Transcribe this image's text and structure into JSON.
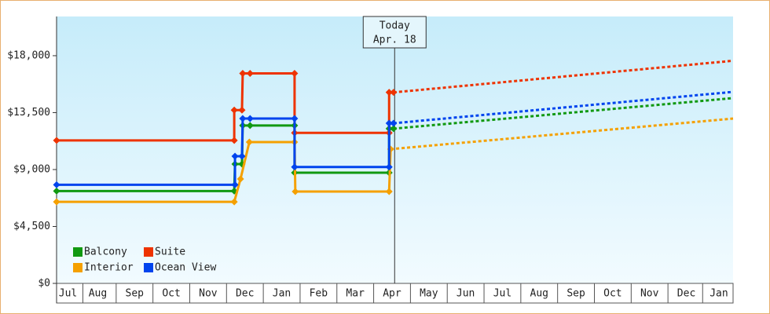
{
  "chart_data": {
    "type": "line",
    "step": true,
    "xlim": [
      0.38,
      18.77
    ],
    "ylim": [
      0,
      21100
    ],
    "yticks": [
      {
        "value": 0,
        "label": "$0"
      },
      {
        "value": 4500,
        "label": "$4,500"
      },
      {
        "value": 9000,
        "label": "$9,000"
      },
      {
        "value": 13500,
        "label": "$13,500"
      },
      {
        "value": 18000,
        "label": "$18,000"
      }
    ],
    "xticks": [
      {
        "value": 0.69,
        "label": "Jul"
      },
      {
        "value": 1.5,
        "label": "Aug"
      },
      {
        "value": 2.5,
        "label": "Sep"
      },
      {
        "value": 3.5,
        "label": "Oct"
      },
      {
        "value": 4.5,
        "label": "Nov"
      },
      {
        "value": 5.5,
        "label": "Dec"
      },
      {
        "value": 6.5,
        "label": "Jan"
      },
      {
        "value": 7.5,
        "label": "Feb"
      },
      {
        "value": 8.5,
        "label": "Mar"
      },
      {
        "value": 9.5,
        "label": "Apr"
      },
      {
        "value": 10.5,
        "label": "May"
      },
      {
        "value": 11.5,
        "label": "Jun"
      },
      {
        "value": 12.5,
        "label": "Jul"
      },
      {
        "value": 13.5,
        "label": "Aug"
      },
      {
        "value": 14.5,
        "label": "Sep"
      },
      {
        "value": 15.5,
        "label": "Oct"
      },
      {
        "value": 16.5,
        "label": "Nov"
      },
      {
        "value": 17.5,
        "label": "Dec"
      },
      {
        "value": 18.385,
        "label": "Jan"
      }
    ],
    "legend": "bottom-left",
    "annotation": {
      "x": 9.57,
      "text": "Today",
      "date": "Apr. 18"
    },
    "series": [
      {
        "name": "Balcony",
        "color": "#119911",
        "x": [
          0.38,
          5.21,
          5.23,
          5.42,
          5.44,
          5.64,
          6.85,
          6.85,
          9.42,
          9.42,
          9.54
        ],
        "values": [
          7300,
          7300,
          9430,
          9430,
          12480,
          12480,
          12480,
          8750,
          8750,
          12230,
          12230
        ],
        "forecast": {
          "x": [
            9.54,
            18.77
          ],
          "values": [
            12230,
            14650
          ]
        }
      },
      {
        "name": "Suite",
        "color": "#ee3300",
        "x": [
          0.38,
          5.21,
          5.21,
          5.42,
          5.44,
          5.64,
          6.85,
          6.85,
          9.42,
          9.42,
          9.54
        ],
        "values": [
          11300,
          11300,
          13700,
          13700,
          16600,
          16600,
          16600,
          11900,
          11900,
          15100,
          15100
        ],
        "forecast": {
          "x": [
            9.54,
            18.77
          ],
          "values": [
            15100,
            17600
          ]
        }
      },
      {
        "name": "Interior",
        "color": "#f5a000",
        "x": [
          0.38,
          5.21,
          5.38,
          5.62,
          6.85,
          6.87,
          9.42,
          9.46
        ],
        "values": [
          6450,
          6450,
          8250,
          11170,
          11170,
          7260,
          7260,
          10610
        ],
        "forecast": {
          "x": [
            9.46,
            18.77
          ],
          "values": [
            10610,
            13030
          ]
        }
      },
      {
        "name": "Ocean View",
        "color": "#0044ee",
        "x": [
          0.38,
          5.23,
          5.23,
          5.42,
          5.44,
          5.64,
          6.85,
          6.85,
          9.42,
          9.42,
          9.54
        ],
        "values": [
          7800,
          7800,
          10050,
          10050,
          13030,
          13030,
          13030,
          9200,
          9200,
          12660,
          12660
        ],
        "forecast": {
          "x": [
            9.54,
            18.77
          ],
          "values": [
            12660,
            15140
          ]
        }
      }
    ]
  }
}
